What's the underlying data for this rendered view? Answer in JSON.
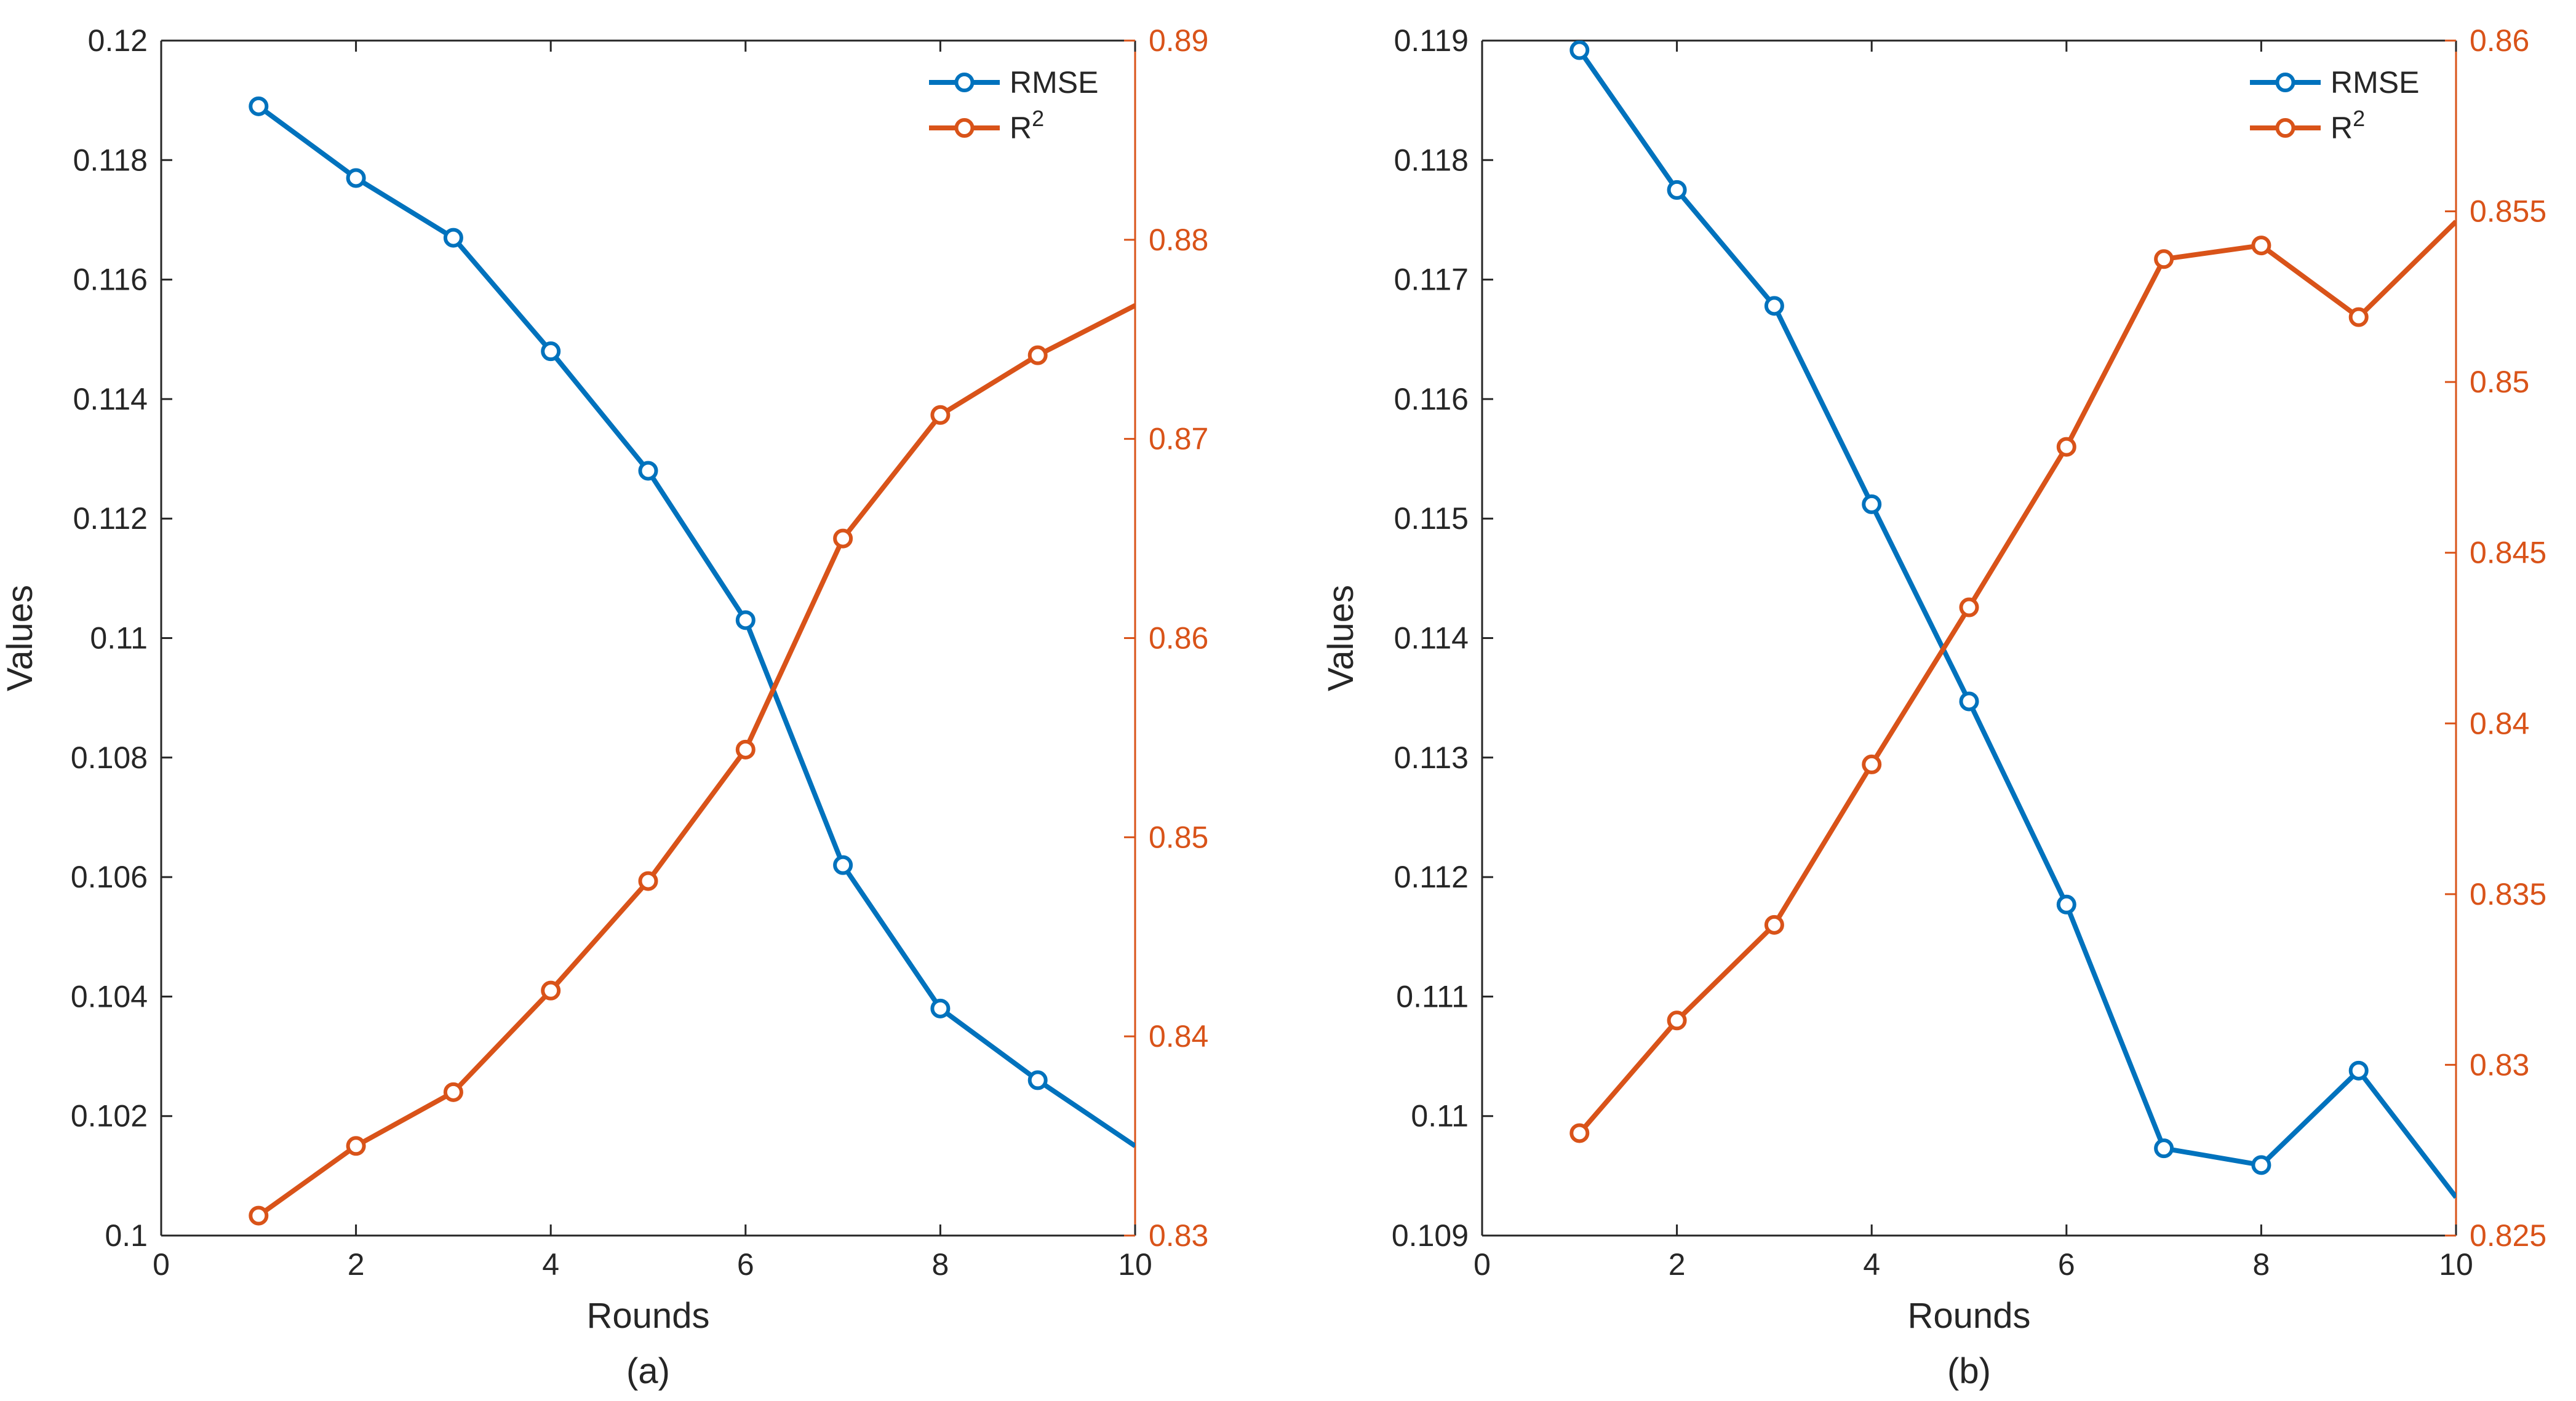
{
  "colors": {
    "rmse": "#0072BD",
    "r2": "#D95319",
    "axis": "#262626"
  },
  "chart_data": [
    {
      "type": "line",
      "panel_label": "(a)",
      "xlabel": "Rounds",
      "ylabel": "Values",
      "xlim": [
        0,
        10
      ],
      "xticks": [
        "0",
        "2",
        "4",
        "6",
        "8",
        "10"
      ],
      "ylim_left": [
        0.1,
        0.12
      ],
      "yticks_left": [
        "0.1",
        "0.102",
        "0.104",
        "0.106",
        "0.108",
        "0.11",
        "0.112",
        "0.114",
        "0.116",
        "0.118",
        "0.12"
      ],
      "ylim_right": [
        0.83,
        0.89
      ],
      "yticks_right": [
        "0.83",
        "0.84",
        "0.85",
        "0.86",
        "0.87",
        "0.88",
        "0.89"
      ],
      "legend": {
        "position": "top-right",
        "entries": [
          "RMSE",
          "R",
          "2"
        ]
      },
      "series": [
        {
          "name": "RMSE",
          "axis": "left",
          "x": [
            1,
            2,
            3,
            4,
            5,
            6,
            7,
            8,
            9,
            10
          ],
          "values": [
            0.1189,
            0.1177,
            0.1167,
            0.1148,
            0.1128,
            0.1103,
            0.1062,
            0.1038,
            0.1026,
            0.1015
          ]
        },
        {
          "name": "R2",
          "axis": "right",
          "x": [
            1,
            2,
            3,
            4,
            5,
            6,
            7,
            8,
            9,
            10
          ],
          "values": [
            0.831,
            0.8345,
            0.8372,
            0.8423,
            0.8478,
            0.8544,
            0.865,
            0.8712,
            0.8742,
            0.8767
          ]
        }
      ]
    },
    {
      "type": "line",
      "panel_label": "(b)",
      "xlabel": "Rounds",
      "ylabel": "Values",
      "xlim": [
        0,
        10
      ],
      "xticks": [
        "0",
        "2",
        "4",
        "6",
        "8",
        "10"
      ],
      "ylim_left": [
        0.109,
        0.119
      ],
      "yticks_left": [
        "0.109",
        "0.11",
        "0.111",
        "0.112",
        "0.113",
        "0.114",
        "0.115",
        "0.116",
        "0.117",
        "0.118",
        "0.119"
      ],
      "ylim_right": [
        0.825,
        0.86
      ],
      "yticks_right": [
        "0.825",
        "0.83",
        "0.835",
        "0.84",
        "0.845",
        "0.85",
        "0.855",
        "0.86"
      ],
      "legend": {
        "position": "top-right",
        "entries": [
          "RMSE",
          "R",
          "2"
        ]
      },
      "series": [
        {
          "name": "RMSE",
          "axis": "left",
          "x": [
            1,
            2,
            3,
            4,
            5,
            6,
            7,
            8,
            9,
            10
          ],
          "values": [
            0.11892,
            0.11775,
            0.11678,
            0.11512,
            0.11347,
            0.11177,
            0.10973,
            0.10959,
            0.11038,
            0.10932
          ]
        },
        {
          "name": "R2",
          "axis": "right",
          "x": [
            1,
            2,
            3,
            4,
            5,
            6,
            7,
            8,
            9,
            10
          ],
          "values": [
            0.828,
            0.8313,
            0.8341,
            0.8388,
            0.8434,
            0.8481,
            0.8536,
            0.854,
            0.8519,
            0.8547
          ]
        }
      ]
    }
  ]
}
